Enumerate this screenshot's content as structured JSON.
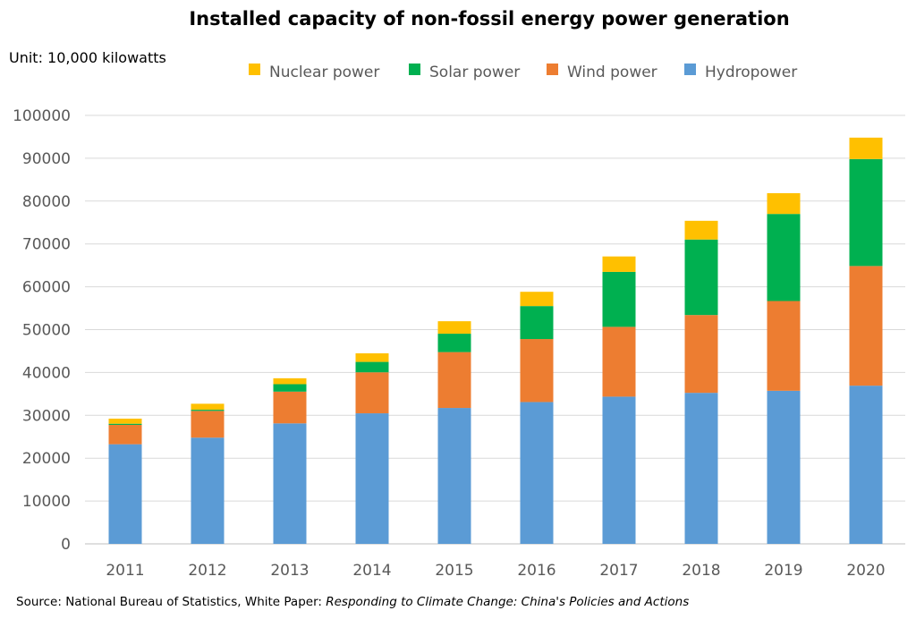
{
  "chart_data": {
    "type": "bar",
    "stacked": true,
    "title": "Installed capacity of non-fossil energy power generation",
    "unit_label": "Unit: 10,000 kilowatts",
    "source": "Source: National Bureau of Statistics, White Paper: ",
    "source_italic": "Responding to Climate Change: China's Policies and Actions",
    "categories": [
      "2011",
      "2012",
      "2013",
      "2014",
      "2015",
      "2016",
      "2017",
      "2018",
      "2019",
      "2020"
    ],
    "ylim": [
      0,
      100000
    ],
    "yticks": [
      0,
      10000,
      20000,
      30000,
      40000,
      50000,
      60000,
      70000,
      80000,
      90000,
      100000
    ],
    "grid": true,
    "legend_position": "top",
    "legend_order": [
      "Nuclear power",
      "Solar power",
      "Wind power",
      "Hydropower"
    ],
    "series": [
      {
        "name": "Hydropower",
        "color": "#5b9bd5",
        "values": [
          23250,
          24790,
          28120,
          30470,
          31720,
          33100,
          34360,
          35250,
          35730,
          36920
        ]
      },
      {
        "name": "Wind power",
        "color": "#ed7d31",
        "values": [
          4520,
          6240,
          7410,
          9570,
          13040,
          14700,
          16290,
          18160,
          20950,
          27930
        ]
      },
      {
        "name": "Solar power",
        "color": "#00b050",
        "values": [
          270,
          270,
          1740,
          2430,
          4290,
          7700,
          12830,
          17620,
          20320,
          24960
        ]
      },
      {
        "name": "Nuclear power",
        "color": "#ffc000",
        "values": [
          1180,
          1400,
          1380,
          2000,
          2910,
          3330,
          3600,
          4370,
          4850,
          5000
        ]
      }
    ]
  }
}
